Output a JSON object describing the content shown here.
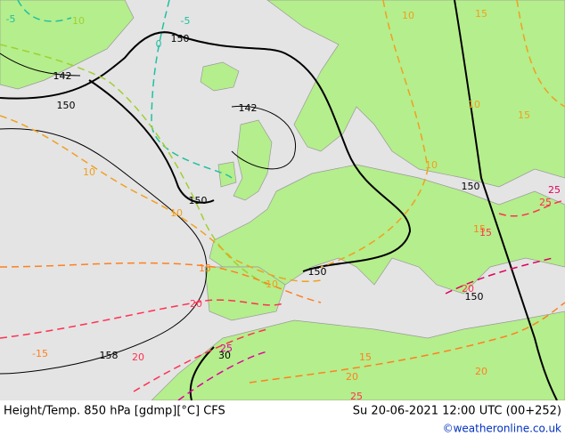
{
  "map": {
    "contour_labels": [
      "-5",
      "-5",
      "0",
      "150",
      "142",
      "150",
      "142",
      "10",
      "10",
      "150",
      "150",
      "150",
      "150",
      "10",
      "10",
      "15",
      "20",
      "25",
      "20",
      "-15",
      "15",
      "20",
      "30",
      "158",
      "25",
      "20",
      "25",
      "15",
      "10",
      "10",
      "15",
      "20",
      "15",
      "25",
      "10",
      "15"
    ],
    "footer": {
      "left": "Height/Temp. 850 hPa [gdmp][°C] CFS",
      "right": "Su 20-06-2021 12:00 UTC (00+252)",
      "credit": "©weatheronline.co.uk"
    }
  }
}
